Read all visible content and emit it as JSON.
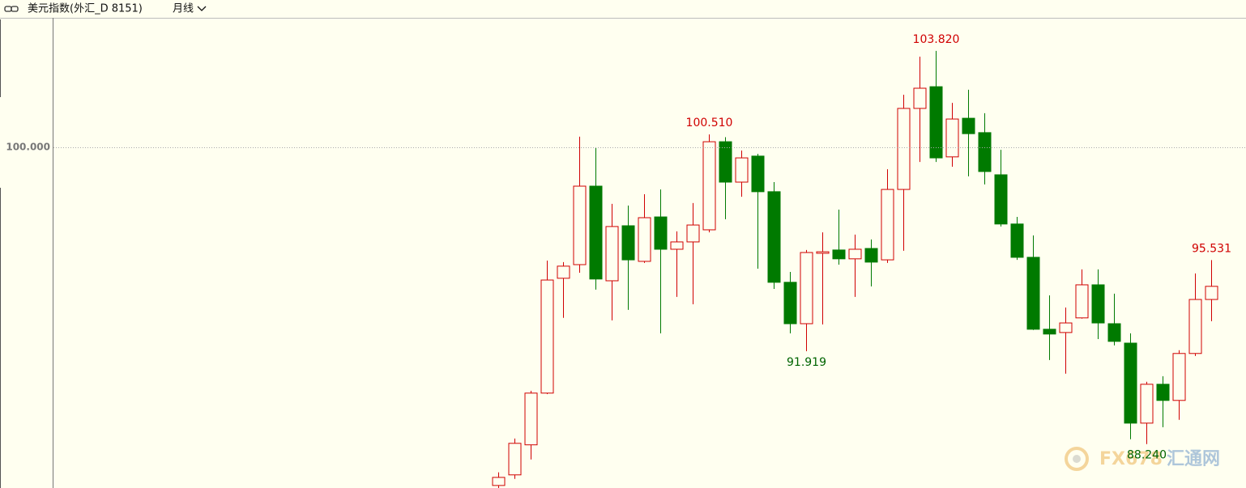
{
  "header": {
    "title": "美元指数(外汇_D 8151)",
    "period": "月线"
  },
  "watermark": [
    "FX678",
    "汇通网"
  ],
  "chart_data": {
    "type": "candlestick",
    "up_color": "#d00000",
    "down_color": "#007a00",
    "high_label_color": "#d00000",
    "low_label_color": "#006400",
    "ylim": [
      86.5,
      105.13
    ],
    "yticks": [
      {
        "value": 100,
        "label": "100.000"
      }
    ],
    "grid": true,
    "open": [
      86.6,
      87.02,
      88.21,
      90.26,
      94.81,
      95.35,
      98.46,
      94.71,
      96.89,
      95.48,
      97.24,
      95.96,
      96.25,
      96.73,
      100.22,
      98.62,
      99.65,
      98.24,
      94.65,
      93.01,
      95.8,
      95.93,
      95.58,
      95.99,
      95.54,
      98.33,
      101.54,
      102.4,
      99.62,
      101.15,
      100.58,
      98.91,
      96.96,
      95.64,
      92.79,
      92.66,
      93.24,
      94.55,
      93.01,
      92.24,
      89.07,
      90.61,
      89.97,
      91.83,
      93.97
    ],
    "high": [
      87.12,
      88.46,
      90.35,
      95.51,
      95.45,
      100.42,
      100.0,
      97.76,
      97.69,
      98.14,
      98.33,
      96.67,
      97.79,
      100.51,
      100.4,
      99.87,
      99.74,
      98.62,
      95.06,
      95.93,
      96.63,
      97.53,
      96.54,
      96.35,
      99.13,
      102.08,
      103.59,
      103.82,
      101.76,
      102.28,
      101.35,
      99.9,
      97.24,
      96.51,
      94.13,
      93.65,
      95.16,
      95.16,
      94.2,
      92.63,
      90.71,
      90.93,
      91.96,
      95.0,
      95.531
    ],
    "low": [
      86.5,
      86.86,
      87.63,
      90.22,
      93.24,
      95.03,
      94.36,
      93.14,
      93.56,
      95.42,
      92.63,
      94.07,
      93.78,
      96.63,
      97.15,
      98.04,
      95.19,
      94.39,
      92.63,
      91.919,
      92.98,
      95.35,
      94.07,
      94.49,
      95.42,
      95.9,
      99.42,
      99.42,
      99.23,
      98.85,
      98.53,
      96.86,
      95.54,
      92.76,
      91.57,
      91.03,
      93.21,
      92.4,
      92.15,
      88.43,
      88.24,
      88.91,
      89.2,
      91.73,
      93.11
    ],
    "close": [
      86.92,
      88.27,
      90.26,
      94.74,
      95.29,
      98.46,
      94.78,
      96.86,
      95.54,
      97.21,
      95.96,
      96.25,
      96.92,
      100.22,
      98.62,
      99.58,
      98.24,
      94.65,
      93.01,
      95.83,
      95.86,
      95.58,
      95.96,
      95.45,
      98.33,
      101.54,
      102.34,
      99.58,
      101.12,
      100.54,
      99.04,
      96.96,
      95.64,
      92.79,
      92.6,
      93.04,
      94.55,
      93.04,
      92.31,
      89.07,
      90.61,
      89.97,
      91.83,
      93.97,
      94.49
    ],
    "high_labels": [
      null,
      null,
      null,
      null,
      null,
      null,
      null,
      null,
      null,
      null,
      null,
      null,
      null,
      "100.510",
      null,
      null,
      null,
      null,
      null,
      null,
      null,
      null,
      null,
      null,
      null,
      null,
      null,
      "103.820",
      null,
      null,
      null,
      null,
      null,
      null,
      null,
      null,
      null,
      null,
      null,
      null,
      null,
      null,
      null,
      null,
      "95.531"
    ],
    "low_labels": [
      null,
      null,
      null,
      null,
      null,
      null,
      null,
      null,
      null,
      null,
      null,
      null,
      null,
      null,
      null,
      null,
      null,
      null,
      null,
      "91.919",
      null,
      null,
      null,
      null,
      null,
      null,
      null,
      null,
      null,
      null,
      null,
      null,
      null,
      null,
      null,
      null,
      null,
      null,
      null,
      null,
      "88.240",
      null,
      null,
      null,
      null
    ]
  }
}
